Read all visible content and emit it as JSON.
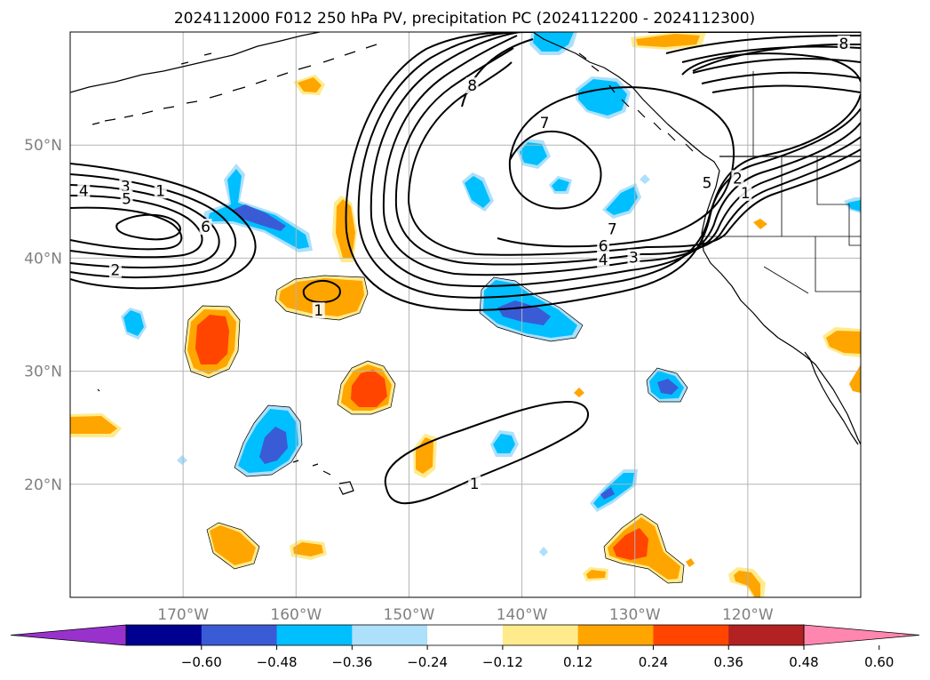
{
  "figure": {
    "title": "2024112000 F012 250 hPa PV, precipitation PC (2024112200 - 2024112300)"
  },
  "map": {
    "lon_range": [
      -180,
      -110
    ],
    "lat_range": [
      10,
      60
    ],
    "lon_ticks": [
      {
        "value": -170,
        "label": "170°W"
      },
      {
        "value": -160,
        "label": "160°W"
      },
      {
        "value": -150,
        "label": "150°W"
      },
      {
        "value": -140,
        "label": "140°W"
      },
      {
        "value": -130,
        "label": "130°W"
      },
      {
        "value": -120,
        "label": "120°W"
      }
    ],
    "lat_ticks": [
      {
        "value": 20,
        "label": "20°N"
      },
      {
        "value": 30,
        "label": "30°N"
      },
      {
        "value": 40,
        "label": "40°N"
      },
      {
        "value": 50,
        "label": "50°N"
      }
    ],
    "gridlines": true,
    "tick_label_color": "#808080"
  },
  "pv_contour_labels": [
    {
      "text": "1",
      "lon": -172.0,
      "lat": 45.9
    },
    {
      "text": "2",
      "lon": -176.0,
      "lat": 38.9
    },
    {
      "text": "3",
      "lon": -175.1,
      "lat": 46.3
    },
    {
      "text": "4",
      "lon": -178.8,
      "lat": 45.9
    },
    {
      "text": "5",
      "lon": -175.0,
      "lat": 45.2
    },
    {
      "text": "6",
      "lon": -168.0,
      "lat": 42.7
    },
    {
      "text": "1",
      "lon": -158.0,
      "lat": 35.3
    },
    {
      "text": "8",
      "lon": -144.4,
      "lat": 55.2
    },
    {
      "text": "7",
      "lon": -138.0,
      "lat": 51.9
    },
    {
      "text": "7",
      "lon": -132.0,
      "lat": 42.5
    },
    {
      "text": "6",
      "lon": -132.8,
      "lat": 41.0
    },
    {
      "text": "4",
      "lon": -132.8,
      "lat": 39.8
    },
    {
      "text": "3",
      "lon": -130.1,
      "lat": 40.0
    },
    {
      "text": "8",
      "lon": -111.5,
      "lat": 58.9
    },
    {
      "text": "5",
      "lon": -123.6,
      "lat": 46.6
    },
    {
      "text": "2",
      "lon": -120.9,
      "lat": 47.0
    },
    {
      "text": "1",
      "lon": -120.2,
      "lat": 45.7
    },
    {
      "text": "1",
      "lon": -144.2,
      "lat": 20.0
    }
  ],
  "colorbar": {
    "ticks": [
      "−0.60",
      "−0.48",
      "−0.36",
      "−0.24",
      "−0.12",
      "0.12",
      "0.24",
      "0.36",
      "0.48",
      "0.60"
    ],
    "colors": [
      "#9932CC",
      "#000090",
      "#3A5BD6",
      "#00BFFF",
      "#ADE0FA",
      "#FFFFFF",
      "#FFEB8C",
      "#FFA500",
      "#FF4500",
      "#B22222",
      "#FF86AF"
    ],
    "extend": "both"
  },
  "chart_data": {
    "type": "map",
    "title": "2024112000 F012 250 hPa PV, precipitation PC (2024112200 - 2024112300)",
    "region": {
      "lon": [
        -180,
        -110
      ],
      "lat": [
        10,
        60
      ]
    },
    "pv_contour_levels": [
      1,
      2,
      3,
      4,
      5,
      6,
      7,
      8
    ],
    "colorbar_levels": [
      -0.6,
      -0.48,
      -0.36,
      -0.24,
      -0.12,
      0.12,
      0.24,
      0.36,
      0.48,
      0.6
    ],
    "features": [
      {
        "kind": "pv_max",
        "lon": -169,
        "lat": 43.3,
        "peak_label": 6
      },
      {
        "kind": "pv_ridge_trough",
        "lon": -135,
        "lat": 48,
        "peak_label": 8
      },
      {
        "kind": "pv_isolated",
        "lon": -158,
        "lat": 36.5,
        "peak_label": 1
      },
      {
        "kind": "pv_isolated",
        "lon": -142,
        "lat": 22,
        "peak_label": 1
      }
    ]
  }
}
